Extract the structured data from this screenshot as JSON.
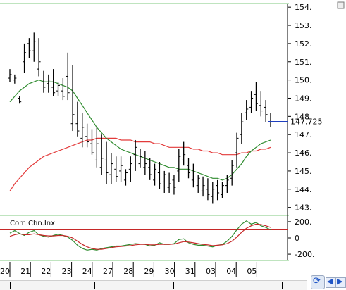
{
  "chart_data": [
    {
      "type": "bar",
      "subtype": "ohlc-price-with-moving-averages",
      "price_axis": {
        "ticks": [
          "154.",
          "153.",
          "152.",
          "151.",
          "150.",
          "149.",
          "148",
          "147.",
          "146.",
          "145.",
          "144.",
          "143."
        ],
        "ylim": [
          142.6,
          154.2
        ]
      },
      "last_price_label": "147.725",
      "last_price": 147.725,
      "x_axis": {
        "tick_labels": [
          "20",
          "21",
          "22",
          "23",
          "24",
          "27",
          "28",
          "29",
          "30",
          "31",
          "03",
          "04",
          "05"
        ]
      },
      "series": [
        {
          "kind": "price-bars",
          "color": "#000000",
          "high": [
            150.6,
            150.3,
            149.1,
            152.0,
            152.3,
            152.6,
            152.3,
            150.5,
            150.3,
            150.6,
            149.9,
            150.1,
            151.5,
            150.8,
            148.8,
            148.2,
            147.6,
            147.3,
            147.4,
            147.0,
            146.6,
            146.0,
            145.8,
            145.8,
            145.1,
            145.8,
            146.7,
            146.2,
            146.1,
            145.7,
            145.4,
            145.5,
            145.0,
            144.9,
            144.8,
            146.2,
            146.6,
            145.7,
            145.4,
            144.8,
            144.7,
            144.6,
            144.4,
            144.5,
            144.4,
            144.8,
            145.6,
            147.1,
            148.2,
            148.9,
            149.4,
            149.9,
            149.4,
            148.9,
            148.2
          ],
          "low": [
            149.9,
            149.8,
            148.7,
            150.4,
            151.2,
            151.0,
            150.2,
            149.3,
            149.3,
            149.1,
            149.1,
            148.9,
            148.9,
            147.2,
            146.9,
            146.3,
            146.3,
            145.9,
            145.2,
            144.8,
            144.3,
            144.3,
            144.4,
            144.4,
            144.2,
            144.4,
            145.0,
            145.2,
            144.8,
            144.5,
            144.2,
            144.0,
            143.8,
            143.8,
            143.7,
            144.4,
            145.3,
            144.6,
            144.1,
            143.8,
            143.6,
            143.4,
            143.2,
            143.4,
            143.5,
            143.8,
            144.2,
            145.2,
            146.5,
            147.8,
            148.2,
            148.3,
            148.0,
            147.7,
            147.4
          ],
          "open": [
            150.1,
            150.0,
            149.0,
            151.0,
            152.0,
            151.6,
            150.6,
            150.0,
            149.8,
            149.6,
            149.4,
            149.4,
            150.2,
            147.6,
            147.6,
            146.8,
            146.9,
            146.5,
            145.6,
            145.2,
            145.6,
            144.8,
            145.1,
            145.0,
            144.5,
            145.1,
            145.9,
            145.4,
            145.2,
            145.2,
            144.5,
            144.9,
            144.4,
            144.1,
            144.5,
            145.0,
            145.6,
            145.3,
            144.5,
            144.2,
            143.9,
            144.0,
            143.6,
            144.2,
            143.7,
            144.2,
            144.6,
            146.0,
            147.0,
            148.2,
            148.5,
            149.2,
            148.6,
            148.5,
            147.8
          ],
          "close": [
            150.3,
            150.1,
            148.8,
            151.5,
            151.6,
            152.1,
            151.0,
            149.6,
            150.0,
            149.3,
            149.7,
            149.1,
            149.3,
            148.1,
            147.2,
            147.4,
            146.6,
            146.0,
            146.5,
            145.7,
            144.9,
            145.4,
            144.7,
            145.3,
            144.9,
            145.4,
            146.3,
            145.8,
            145.4,
            144.8,
            145.1,
            144.3,
            144.8,
            144.3,
            144.1,
            145.8,
            145.9,
            144.9,
            144.4,
            144.6,
            144.2,
            143.7,
            144.0,
            143.8,
            144.2,
            144.5,
            145.3,
            146.8,
            147.7,
            148.4,
            149.0,
            148.7,
            148.3,
            148.1,
            147.7
          ]
        },
        {
          "kind": "moving-average-short",
          "color": "#2e8b2e",
          "values": [
            148.8,
            149.1,
            149.4,
            149.6,
            149.8,
            149.9,
            150.0,
            149.9,
            149.9,
            149.9,
            149.8,
            149.7,
            149.6,
            149.4,
            149.0,
            148.6,
            148.2,
            147.8,
            147.4,
            147.1,
            146.8,
            146.6,
            146.4,
            146.2,
            146.1,
            146.0,
            145.9,
            145.8,
            145.7,
            145.6,
            145.5,
            145.4,
            145.3,
            145.2,
            145.2,
            145.1,
            145.1,
            145.1,
            145.0,
            144.9,
            144.8,
            144.7,
            144.6,
            144.6,
            144.5,
            144.6,
            144.8,
            145.1,
            145.4,
            145.8,
            146.1,
            146.3,
            146.5,
            146.6,
            146.7
          ]
        },
        {
          "kind": "moving-average-long",
          "color": "#e33a3a",
          "values": [
            143.9,
            144.3,
            144.6,
            144.9,
            145.2,
            145.4,
            145.6,
            145.8,
            145.9,
            146.0,
            146.1,
            146.2,
            146.3,
            146.4,
            146.5,
            146.6,
            146.7,
            146.7,
            146.8,
            146.8,
            146.8,
            146.8,
            146.8,
            146.7,
            146.7,
            146.7,
            146.6,
            146.6,
            146.6,
            146.6,
            146.5,
            146.5,
            146.4,
            146.3,
            146.3,
            146.3,
            146.3,
            146.3,
            146.2,
            146.2,
            146.1,
            146.1,
            146.0,
            146.0,
            145.9,
            145.9,
            145.9,
            145.9,
            146.0,
            146.0,
            146.1,
            146.1,
            146.2,
            146.2,
            146.3
          ]
        }
      ]
    },
    {
      "type": "line",
      "title": "Com.Chn.Inx",
      "y_ticks": [
        "200.",
        "0",
        "-200."
      ],
      "ylim": [
        -260,
        260
      ],
      "reference_lines": [
        {
          "value": 100,
          "color": "#c62828"
        },
        {
          "value": -100,
          "color": "#2e8b2e"
        }
      ],
      "series": [
        {
          "color": "#2e8b2e",
          "values": [
            60,
            90,
            55,
            30,
            70,
            90,
            40,
            20,
            10,
            30,
            45,
            30,
            10,
            -30,
            -90,
            -130,
            -150,
            -140,
            -150,
            -130,
            -120,
            -110,
            -100,
            -100,
            -90,
            -80,
            -70,
            -75,
            -80,
            -100,
            -90,
            -60,
            -80,
            -80,
            -70,
            -20,
            -10,
            -60,
            -80,
            -90,
            -90,
            -100,
            -110,
            -90,
            -80,
            -40,
            20,
            100,
            170,
            210,
            170,
            190,
            150,
            130,
            100
          ]
        },
        {
          "color": "#c62828",
          "values": [
            20,
            40,
            50,
            40,
            40,
            50,
            40,
            30,
            25,
            25,
            30,
            30,
            20,
            0,
            -40,
            -80,
            -110,
            -130,
            -140,
            -140,
            -130,
            -120,
            -110,
            -105,
            -100,
            -95,
            -85,
            -80,
            -80,
            -85,
            -85,
            -80,
            -80,
            -80,
            -75,
            -60,
            -45,
            -50,
            -60,
            -70,
            -80,
            -85,
            -95,
            -90,
            -85,
            -70,
            -40,
            10,
            70,
            120,
            150,
            170,
            165,
            150,
            130
          ]
        }
      ]
    }
  ]
}
